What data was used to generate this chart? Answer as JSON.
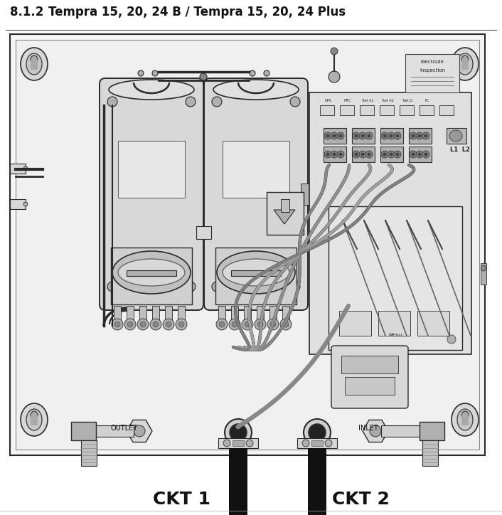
{
  "title_num": "8.1.2",
  "title_text": "Tempra 15, 20, 24 B / Tempra 15, 20, 24 Plus",
  "title_fontsize": 12,
  "bg_color": "#ffffff",
  "panel_color": "#f0f0f0",
  "line_color": "#2a2a2a",
  "light_gray": "#d8d8d8",
  "mid_gray": "#b0b0b0",
  "dark_gray": "#555555",
  "label_outlet": "OUTLET",
  "label_inlet": "INLET",
  "label_ckt1": "CKT 1",
  "label_ckt2": "CKT 2",
  "fig_width": 7.06,
  "fig_height": 7.24,
  "dpi": 100
}
